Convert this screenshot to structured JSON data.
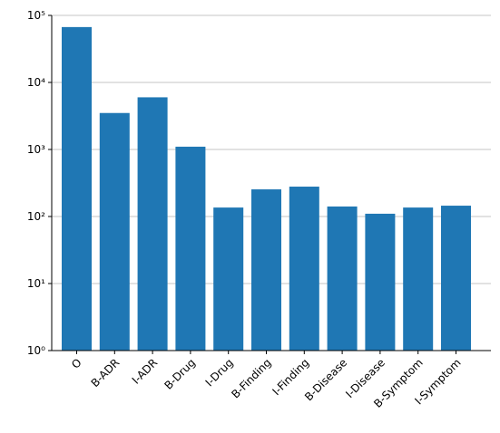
{
  "chart_data": {
    "type": "bar",
    "categories": [
      "O",
      "B-ADR",
      "I-ADR",
      "B-Drug",
      "I-Drug",
      "B-Finding",
      "I-Finding",
      "B-Disease",
      "I-Disease",
      "B-Symptom",
      "I-Symptom"
    ],
    "values": [
      67000,
      3500,
      6000,
      1100,
      136,
      254,
      279,
      141,
      110,
      136,
      145
    ],
    "color": "#1f77b4",
    "log_y": true,
    "ylim": [
      1,
      100000
    ],
    "yticks": [
      {
        "value": 1,
        "label": "10⁰"
      },
      {
        "value": 10,
        "label": "10¹"
      },
      {
        "value": 100,
        "label": "10²"
      },
      {
        "value": 1000,
        "label": "10³"
      },
      {
        "value": 10000,
        "label": "10⁴"
      },
      {
        "value": 100000,
        "label": "10⁵"
      }
    ],
    "grid": true
  }
}
